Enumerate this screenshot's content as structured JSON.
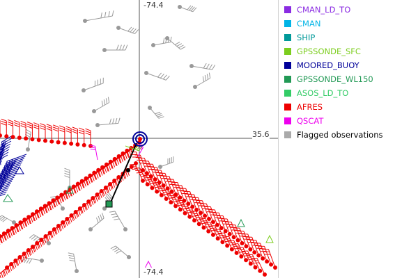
{
  "map": {
    "axis_labels": {
      "top": "-74.4",
      "bottom": "-74.4",
      "right": "35.6"
    }
  },
  "legend": {
    "items": [
      {
        "label": "CMAN_LD_TO",
        "color": "#8a2be2"
      },
      {
        "label": "CMAN",
        "color": "#00b4e6"
      },
      {
        "label": "SHIP",
        "color": "#009999"
      },
      {
        "label": "GPSSONDE_SFC",
        "color": "#7ccd1e"
      },
      {
        "label": "MOORED_BUOY",
        "color": "#000099"
      },
      {
        "label": "GPSSONDE_WL150",
        "color": "#229955"
      },
      {
        "label": "ASOS_LD_TO",
        "color": "#33cc66"
      },
      {
        "label": "AFRES",
        "color": "#ee0000"
      },
      {
        "label": "QSCAT",
        "color": "#ee00ee"
      },
      {
        "label": "Flagged observations",
        "color": "#aaaaaa"
      }
    ]
  }
}
